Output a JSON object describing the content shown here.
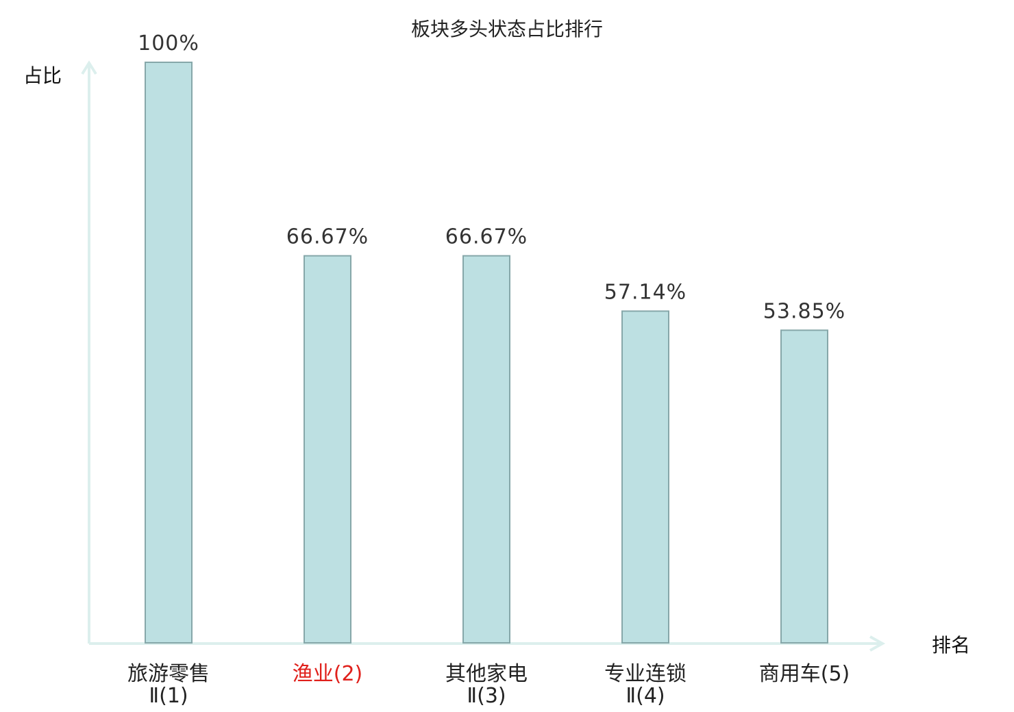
{
  "chart_data": {
    "type": "bar",
    "title": "板块多头状态占比排行",
    "ylabel": "占比",
    "xlabel": "排名",
    "ylim": [
      0,
      100
    ],
    "grid": false,
    "categories": [
      {
        "line1": "旅游零售",
        "line2": "Ⅱ(1)",
        "highlight": false
      },
      {
        "line1": "渔业(2)",
        "line2": "",
        "highlight": true
      },
      {
        "line1": "其他家电",
        "line2": "Ⅱ(3)",
        "highlight": false
      },
      {
        "line1": "专业连锁",
        "line2": "Ⅱ(4)",
        "highlight": false
      },
      {
        "line1": "商用车(5)",
        "line2": "",
        "highlight": false
      }
    ],
    "values": [
      100,
      66.67,
      66.67,
      57.14,
      53.85
    ],
    "value_labels": [
      "100%",
      "66.67%",
      "66.67%",
      "57.14%",
      "53.85%"
    ],
    "colors": {
      "bar_fill": "#bde0e2",
      "bar_stroke": "#86a7a9",
      "axis": "#dcefed",
      "highlight_text": "#e0201b"
    }
  }
}
